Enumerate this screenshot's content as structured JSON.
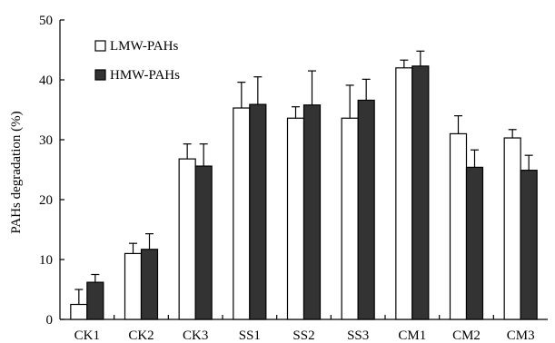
{
  "chart_data": {
    "type": "bar",
    "ylabel": "PAHs degradation (%)",
    "xlabel": "",
    "ylim": [
      0,
      50
    ],
    "yticks": [
      0,
      10,
      20,
      30,
      40,
      50
    ],
    "categories": [
      "CK1",
      "CK2",
      "CK3",
      "SS1",
      "SS2",
      "SS3",
      "CM1",
      "CM2",
      "CM3"
    ],
    "series": [
      {
        "name": "LMW-PAHs",
        "color": "#ffffff",
        "values": [
          2.5,
          11.0,
          26.8,
          35.3,
          33.6,
          33.6,
          42.0,
          31.0,
          30.3
        ],
        "errors": [
          2.5,
          1.7,
          2.5,
          4.3,
          1.9,
          5.5,
          1.3,
          3.0,
          1.4
        ]
      },
      {
        "name": "HMW-PAHs",
        "color": "#333333",
        "values": [
          6.2,
          11.7,
          25.6,
          35.9,
          35.8,
          36.6,
          42.3,
          25.4,
          24.9
        ],
        "errors": [
          1.3,
          2.6,
          3.7,
          4.6,
          5.7,
          3.5,
          2.5,
          2.9,
          2.5
        ]
      }
    ],
    "legend": "top-left",
    "grid": false
  }
}
